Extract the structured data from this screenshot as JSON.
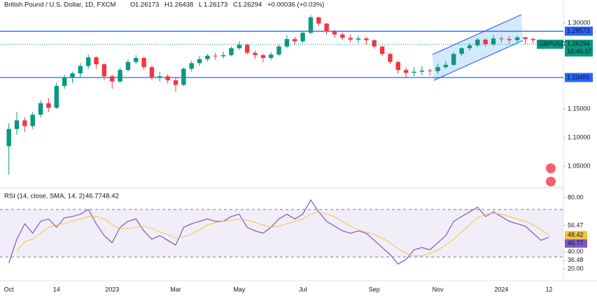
{
  "chart_data": [
    {
      "type": "candlestick",
      "title": "British Pound / U.S. Dollar, 1D, FXCM",
      "ohlc_prefixes": [
        "O",
        "H",
        "L",
        "C"
      ],
      "change_label": "+0.00036 (+0.03%)",
      "symbol": "GBPUSD",
      "countdown": "16:46:37",
      "categories": [
        "Oct",
        null,
        null,
        null,
        null,
        null,
        "14",
        null,
        null,
        null,
        null,
        null,
        null,
        "2023",
        null,
        null,
        null,
        null,
        null,
        null,
        null,
        "Mar",
        null,
        null,
        null,
        null,
        null,
        null,
        null,
        "May",
        null,
        null,
        null,
        null,
        null,
        null,
        null,
        "Jul",
        null,
        null,
        null,
        null,
        null,
        null,
        null,
        null,
        "Sep",
        null,
        null,
        null,
        null,
        null,
        null,
        null,
        "Nov",
        null,
        null,
        null,
        null,
        null,
        null,
        null,
        "2024",
        null,
        null,
        null,
        null,
        null,
        "12"
      ],
      "open": [
        1.085,
        1.115,
        1.13,
        1.12,
        1.14,
        1.16,
        1.152,
        1.19,
        1.205,
        1.212,
        1.225,
        1.24,
        1.228,
        1.207,
        1.198,
        1.218,
        1.232,
        1.239,
        1.223,
        1.205,
        1.207,
        1.2,
        1.192,
        1.22,
        1.23,
        1.237,
        1.243,
        1.242,
        1.244,
        1.256,
        1.262,
        1.248,
        1.244,
        1.239,
        1.245,
        1.259,
        1.272,
        1.268,
        1.283,
        1.31,
        1.299,
        1.285,
        1.28,
        1.274,
        1.271,
        1.273,
        1.27,
        1.259,
        1.246,
        1.232,
        1.218,
        1.213,
        1.215,
        1.217,
        1.216,
        1.223,
        1.227,
        1.246,
        1.256,
        1.261,
        1.271,
        1.263,
        1.273,
        1.272,
        1.27,
        1.275,
        1.272,
        1.27,
        1.26173
      ],
      "high": [
        1.125,
        1.145,
        1.135,
        1.145,
        1.165,
        1.169,
        1.196,
        1.21,
        1.215,
        1.23,
        1.245,
        1.242,
        1.23,
        1.21,
        1.222,
        1.237,
        1.244,
        1.241,
        1.226,
        1.214,
        1.211,
        1.205,
        1.223,
        1.234,
        1.242,
        1.246,
        1.248,
        1.25,
        1.259,
        1.268,
        1.264,
        1.252,
        1.247,
        1.249,
        1.262,
        1.279,
        1.276,
        1.285,
        1.314,
        1.311,
        1.3,
        1.288,
        1.283,
        1.28,
        1.278,
        1.276,
        1.271,
        1.26,
        1.248,
        1.234,
        1.222,
        1.223,
        1.225,
        1.221,
        1.229,
        1.234,
        1.249,
        1.258,
        1.265,
        1.274,
        1.273,
        1.279,
        1.277,
        1.277,
        1.278,
        1.276,
        1.274,
        1.272,
        1.26438
      ],
      "low": [
        1.035,
        1.105,
        1.11,
        1.115,
        1.135,
        1.145,
        1.15,
        1.185,
        1.195,
        1.205,
        1.22,
        1.22,
        1.2,
        1.185,
        1.195,
        1.215,
        1.228,
        1.218,
        1.2,
        1.198,
        1.194,
        1.18,
        1.19,
        1.215,
        1.225,
        1.233,
        1.236,
        1.238,
        1.242,
        1.253,
        1.245,
        1.238,
        1.231,
        1.235,
        1.242,
        1.256,
        1.262,
        1.265,
        1.28,
        1.294,
        1.28,
        1.274,
        1.27,
        1.266,
        1.265,
        1.262,
        1.255,
        1.242,
        1.228,
        1.212,
        1.204,
        1.207,
        1.209,
        1.208,
        1.211,
        1.22,
        1.225,
        1.242,
        1.251,
        1.258,
        1.259,
        1.26,
        1.266,
        1.264,
        1.266,
        1.262,
        1.264,
        1.26,
        1.26173
      ],
      "close": [
        1.115,
        1.13,
        1.12,
        1.14,
        1.16,
        1.152,
        1.19,
        1.205,
        1.212,
        1.225,
        1.24,
        1.228,
        1.207,
        1.198,
        1.218,
        1.232,
        1.239,
        1.223,
        1.205,
        1.207,
        1.2,
        1.192,
        1.22,
        1.23,
        1.237,
        1.243,
        1.242,
        1.244,
        1.256,
        1.262,
        1.248,
        1.244,
        1.239,
        1.245,
        1.259,
        1.272,
        1.268,
        1.283,
        1.31,
        1.299,
        1.285,
        1.28,
        1.274,
        1.271,
        1.273,
        1.27,
        1.259,
        1.246,
        1.232,
        1.218,
        1.213,
        1.215,
        1.217,
        1.216,
        1.223,
        1.227,
        1.246,
        1.256,
        1.261,
        1.271,
        1.263,
        1.273,
        1.272,
        1.27,
        1.275,
        1.272,
        1.27,
        1.26258,
        1.26294
      ],
      "up_color": "#089981",
      "down_color": "#f23645",
      "hlines": [
        1.28573,
        1.20485
      ],
      "hline_color": "#2962ff",
      "ylim": [
        1.0134,
        1.3402
      ],
      "yticks": [
        {
          "value": 1.3,
          "label": "1.30000"
        },
        {
          "value": 1.15,
          "label": "1.15000"
        },
        {
          "value": 1.1,
          "label": "1.10000"
        },
        {
          "value": 1.05,
          "label": "1.05000"
        }
      ],
      "grid": false
    },
    {
      "type": "line",
      "title": "RSI (14, close, SMA, 14, 2)",
      "series": [
        {
          "color": "#7e57c2",
          "values": [
            25,
            45,
            58,
            50,
            60,
            62,
            55,
            63,
            64,
            66,
            70,
            58,
            48,
            42,
            55,
            60,
            62,
            52,
            45,
            48,
            44,
            40,
            55,
            58,
            60,
            62,
            60,
            60,
            64,
            66,
            55,
            52,
            50,
            55,
            62,
            66,
            62,
            66,
            78,
            68,
            60,
            56,
            52,
            50,
            52,
            50,
            44,
            38,
            32,
            24,
            28,
            36,
            38,
            36,
            42,
            48,
            60,
            64,
            68,
            72,
            64,
            68,
            64,
            60,
            58,
            56,
            50,
            44,
            46.77
          ]
        },
        {
          "color": "#f5c342",
          "values": [
            null,
            35,
            43,
            45,
            50,
            55,
            57,
            58,
            60,
            62,
            64,
            64,
            62,
            57,
            54,
            54,
            55,
            56,
            54,
            51,
            49,
            46,
            47,
            49,
            53,
            57,
            59,
            60,
            61,
            62,
            61,
            59,
            57,
            55,
            56,
            58,
            60,
            62,
            66,
            68,
            66,
            64,
            60,
            56,
            53,
            51,
            49,
            46,
            42,
            37,
            33,
            31,
            31,
            33,
            36,
            40,
            45,
            51,
            57,
            63,
            66,
            67,
            66,
            64,
            62,
            60,
            57,
            53,
            48.42
          ]
        }
      ],
      "bands": [
        70,
        30
      ],
      "ylim": [
        10,
        87.6
      ],
      "yticks": [
        {
          "value": 80,
          "label": "80.00"
        },
        {
          "value": 56.47,
          "label": "56.47"
        },
        {
          "value": 40,
          "label": "40.00"
        },
        {
          "value": 36.48,
          "label": "36.48"
        },
        {
          "value": 20,
          "label": "20.00"
        }
      ],
      "grid": false
    }
  ]
}
